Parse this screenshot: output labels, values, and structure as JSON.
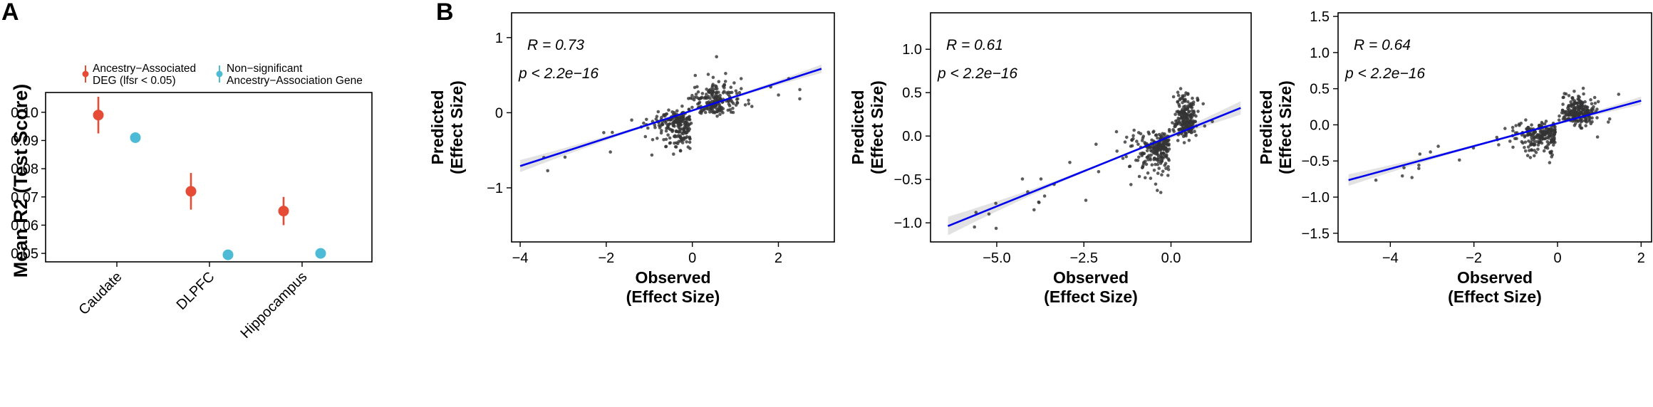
{
  "panels": {
    "a": "A",
    "b": "B"
  },
  "chart_data": [
    {
      "type": "scatter",
      "ylabel": "Mean R2 (Test Score)",
      "categories": [
        "Caudate",
        "DLPFC",
        "Hippocampus"
      ],
      "ylim": [
        0.047,
        0.107
      ],
      "yticks": [
        "0.05",
        "0.06",
        "0.07",
        "0.08",
        "0.09",
        "0.10"
      ],
      "legend_position": "top-left",
      "series": [
        {
          "name_lines": [
            "Ancestry−Associated",
            "DEG (lfsr < 0.05)"
          ],
          "color": "#E64B35",
          "values": [
            0.099,
            0.072,
            0.065
          ],
          "err": [
            0.0065,
            0.0065,
            0.005
          ]
        },
        {
          "name_lines": [
            "Non−significant",
            "Ancestry−Association Gene"
          ],
          "color": "#4DBBD5",
          "values": [
            0.091,
            0.0495,
            0.05
          ],
          "err": [
            0.0,
            0.0,
            0.0
          ]
        }
      ]
    },
    {
      "type": "scatter",
      "xlabel_lines": [
        "Observed",
        "(Effect Size)"
      ],
      "ylabel_lines": [
        "Predicted",
        "(Effect Size)"
      ],
      "xlim": [
        -4.2,
        3.3
      ],
      "ylim": [
        -1.72,
        1.33
      ],
      "xticks": [
        -4,
        -2,
        0,
        2
      ],
      "yticks": [
        -1,
        0,
        1
      ],
      "xtick_labels": [
        "−4",
        "−2",
        "0",
        "2"
      ],
      "ytick_labels": [
        "−1",
        "0",
        "1"
      ],
      "fit": {
        "slope": 0.185,
        "intercept": 0.03,
        "x_range": [
          -4.0,
          3.0
        ]
      },
      "annotations": {
        "r": "R = 0.73",
        "p": "p < 2.2e−16"
      },
      "spread": {
        "neg_x_sd": 0.45,
        "pos_x_sd": 0.45,
        "center_x": 0.55,
        "y_sd": 0.28,
        "n": 420
      }
    },
    {
      "type": "scatter",
      "xlabel_lines": [
        "Observed",
        "(Effect Size)"
      ],
      "ylabel_lines": [
        "Predicted",
        "(Effect Size)"
      ],
      "xlim": [
        -6.9,
        2.3
      ],
      "ylim": [
        -1.22,
        1.42
      ],
      "xticks": [
        -5.0,
        -2.5,
        0.0
      ],
      "yticks": [
        -1.0,
        -0.5,
        0.0,
        0.5,
        1.0
      ],
      "xtick_labels": [
        "−5.0",
        "−2.5",
        "0.0"
      ],
      "ytick_labels": [
        "−1.0",
        "−0.5",
        "0.0",
        "0.5",
        "1.0"
      ],
      "fit": {
        "slope": 0.162,
        "intercept": 0.0,
        "x_range": [
          -6.4,
          2.0
        ]
      },
      "annotations": {
        "r": "R = 0.61",
        "p": "p < 2.2e−16"
      },
      "spread": {
        "neg_x_sd": 0.5,
        "pos_x_sd": 0.3,
        "center_x": 0.45,
        "y_sd": 0.3,
        "n": 460
      }
    },
    {
      "type": "scatter",
      "xlabel_lines": [
        "Observed",
        "(Effect Size)"
      ],
      "ylabel_lines": [
        "Predicted",
        "(Effect Size)"
      ],
      "xlim": [
        -5.25,
        2.25
      ],
      "ylim": [
        -1.62,
        1.55
      ],
      "xticks": [
        -4,
        -2,
        0,
        2
      ],
      "yticks": [
        -1.5,
        -1.0,
        -0.5,
        0.0,
        0.5,
        1.0,
        1.5
      ],
      "xtick_labels": [
        "−4",
        "−2",
        "0",
        "2"
      ],
      "ytick_labels": [
        "−1.5",
        "−1.0",
        "−0.5",
        "0.0",
        "0.5",
        "1.0",
        "1.5"
      ],
      "fit": {
        "slope": 0.157,
        "intercept": 0.02,
        "x_range": [
          -5.0,
          2.0
        ]
      },
      "annotations": {
        "r": "R = 0.64",
        "p": "p < 2.2e−16"
      },
      "spread": {
        "neg_x_sd": 0.45,
        "pos_x_sd": 0.35,
        "center_x": 0.5,
        "y_sd": 0.26,
        "n": 440
      }
    }
  ]
}
